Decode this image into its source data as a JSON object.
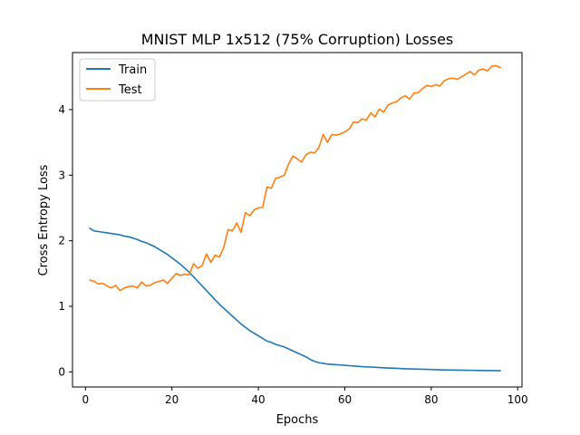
{
  "chart_data": {
    "type": "line",
    "title": "MNIST MLP 1x512 (75% Corruption) Losses",
    "xlabel": "Epochs",
    "ylabel": "Cross Entropy Loss",
    "xlim": [
      -3,
      101
    ],
    "ylim": [
      -0.23,
      4.87
    ],
    "xticks": [
      0,
      20,
      40,
      60,
      80,
      100
    ],
    "yticks": [
      0,
      1,
      2,
      3,
      4
    ],
    "grid": false,
    "legend_position": "upper-left",
    "series": [
      {
        "name": "Train",
        "color": "#1f77b4",
        "x": [
          1,
          2,
          3,
          4,
          5,
          6,
          7,
          8,
          9,
          10,
          11,
          12,
          13,
          14,
          15,
          16,
          17,
          18,
          19,
          20,
          21,
          22,
          23,
          24,
          25,
          26,
          27,
          28,
          29,
          30,
          31,
          32,
          33,
          34,
          35,
          36,
          37,
          38,
          39,
          40,
          41,
          42,
          43,
          44,
          45,
          46,
          47,
          48,
          49,
          50,
          51,
          52,
          53,
          54,
          55,
          56,
          57,
          58,
          59,
          60,
          61,
          62,
          63,
          64,
          65,
          66,
          67,
          68,
          69,
          70,
          71,
          72,
          73,
          74,
          75,
          76,
          77,
          78,
          79,
          80,
          81,
          82,
          83,
          84,
          85,
          86,
          87,
          88,
          89,
          90,
          91,
          92,
          93,
          94,
          95,
          96
        ],
        "y": [
          2.19,
          2.15,
          2.14,
          2.13,
          2.12,
          2.11,
          2.1,
          2.09,
          2.07,
          2.06,
          2.04,
          2.02,
          1.99,
          1.97,
          1.94,
          1.91,
          1.87,
          1.83,
          1.79,
          1.74,
          1.69,
          1.64,
          1.58,
          1.52,
          1.45,
          1.38,
          1.31,
          1.24,
          1.17,
          1.1,
          1.03,
          0.97,
          0.91,
          0.85,
          0.79,
          0.73,
          0.68,
          0.63,
          0.59,
          0.55,
          0.51,
          0.47,
          0.45,
          0.42,
          0.4,
          0.38,
          0.35,
          0.32,
          0.29,
          0.26,
          0.23,
          0.19,
          0.16,
          0.14,
          0.13,
          0.12,
          0.115,
          0.11,
          0.105,
          0.1,
          0.095,
          0.09,
          0.085,
          0.08,
          0.077,
          0.074,
          0.07,
          0.066,
          0.063,
          0.06,
          0.057,
          0.054,
          0.051,
          0.048,
          0.046,
          0.044,
          0.042,
          0.04,
          0.038,
          0.036,
          0.034,
          0.032,
          0.03,
          0.029,
          0.028,
          0.027,
          0.026,
          0.025,
          0.024,
          0.023,
          0.022,
          0.021,
          0.02,
          0.019,
          0.018,
          0.018
        ]
      },
      {
        "name": "Test",
        "color": "#ff7f0e",
        "x": [
          1,
          2,
          3,
          4,
          5,
          6,
          7,
          8,
          9,
          10,
          11,
          12,
          13,
          14,
          15,
          16,
          17,
          18,
          19,
          20,
          21,
          22,
          23,
          24,
          25,
          26,
          27,
          28,
          29,
          30,
          31,
          32,
          33,
          34,
          35,
          36,
          37,
          38,
          39,
          40,
          41,
          42,
          43,
          44,
          45,
          46,
          47,
          48,
          49,
          50,
          51,
          52,
          53,
          54,
          55,
          56,
          57,
          58,
          59,
          60,
          61,
          62,
          63,
          64,
          65,
          66,
          67,
          68,
          69,
          70,
          71,
          72,
          73,
          74,
          75,
          76,
          77,
          78,
          79,
          80,
          81,
          82,
          83,
          84,
          85,
          86,
          87,
          88,
          89,
          90,
          91,
          92,
          93,
          94,
          95,
          96
        ],
        "y": [
          1.4,
          1.38,
          1.34,
          1.35,
          1.31,
          1.28,
          1.32,
          1.24,
          1.28,
          1.3,
          1.31,
          1.28,
          1.37,
          1.31,
          1.32,
          1.36,
          1.38,
          1.4,
          1.35,
          1.43,
          1.5,
          1.47,
          1.49,
          1.48,
          1.65,
          1.58,
          1.62,
          1.8,
          1.67,
          1.78,
          1.75,
          1.9,
          2.17,
          2.15,
          2.27,
          2.13,
          2.43,
          2.38,
          2.47,
          2.5,
          2.51,
          2.82,
          2.8,
          2.95,
          2.97,
          3.0,
          3.17,
          3.29,
          3.25,
          3.2,
          3.31,
          3.35,
          3.34,
          3.42,
          3.62,
          3.5,
          3.62,
          3.61,
          3.63,
          3.66,
          3.7,
          3.81,
          3.8,
          3.86,
          3.84,
          3.95,
          3.89,
          4.01,
          3.96,
          4.07,
          4.1,
          4.12,
          4.18,
          4.21,
          4.16,
          4.25,
          4.26,
          4.32,
          4.37,
          4.35,
          4.38,
          4.36,
          4.44,
          4.47,
          4.48,
          4.46,
          4.5,
          4.54,
          4.58,
          4.53,
          4.6,
          4.62,
          4.59,
          4.66,
          4.67,
          4.64
        ]
      }
    ]
  }
}
